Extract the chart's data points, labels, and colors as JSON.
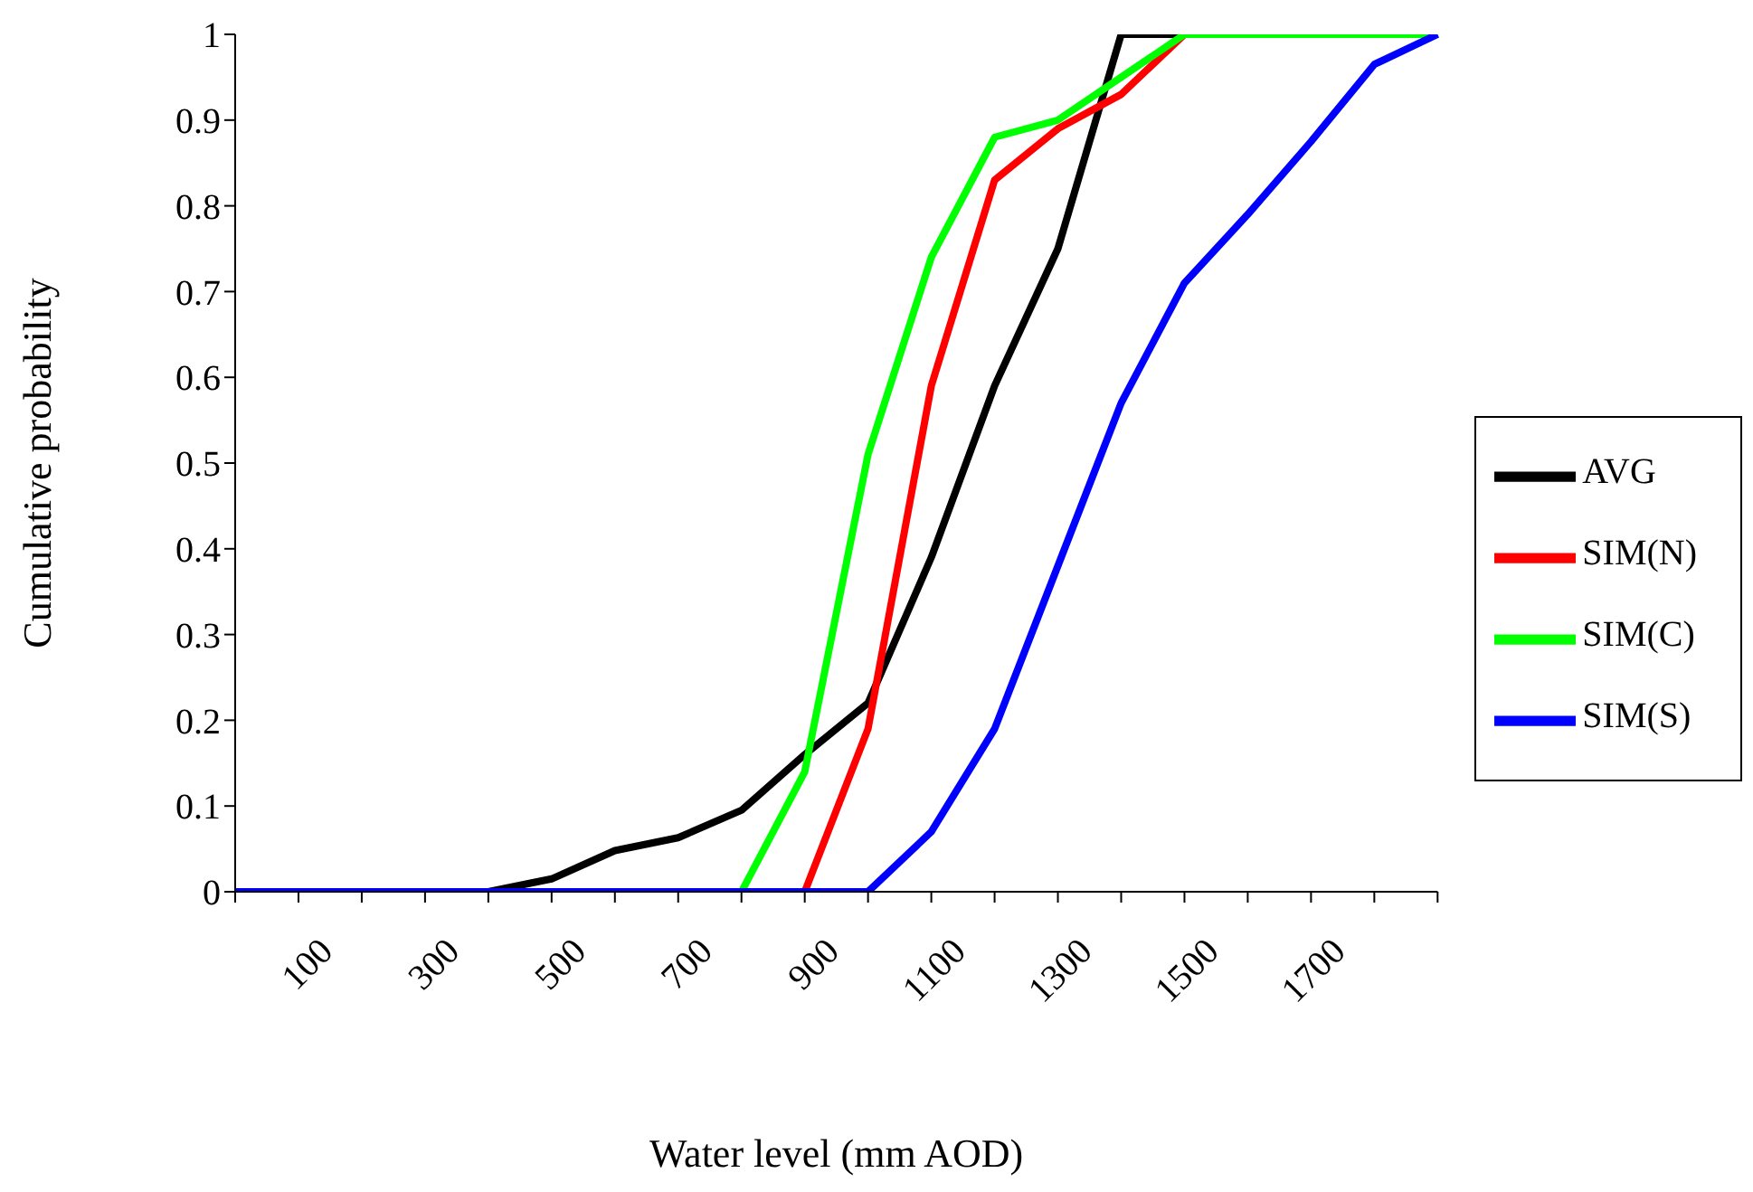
{
  "chart_data": {
    "type": "line",
    "xlabel": "Water level (mm AOD)",
    "ylabel": "Cumulative probability",
    "categories": [
      null,
      "100",
      null,
      "300",
      null,
      "500",
      null,
      "700",
      null,
      "900",
      null,
      "1100",
      null,
      "1300",
      null,
      "1500",
      null,
      "1700",
      null,
      null
    ],
    "series": [
      {
        "name": "AVG",
        "color": "#000000",
        "values": [
          null,
          null,
          null,
          null,
          0,
          0.015,
          0.048,
          0.063,
          0.095,
          0.16,
          0.22,
          0.39,
          0.59,
          0.75,
          1,
          1,
          null,
          null,
          null,
          null
        ]
      },
      {
        "name": "SIM(N)",
        "color": "#ff0000",
        "values": [
          null,
          null,
          null,
          null,
          null,
          null,
          null,
          null,
          null,
          0,
          0.19,
          0.59,
          0.83,
          0.89,
          0.93,
          1,
          null,
          null,
          null,
          null
        ]
      },
      {
        "name": "SIM(C)",
        "color": "#00ff00",
        "values": [
          null,
          null,
          null,
          null,
          null,
          null,
          null,
          null,
          0,
          0.14,
          0.51,
          0.74,
          0.88,
          0.9,
          0.95,
          1,
          1,
          1,
          1,
          1
        ]
      },
      {
        "name": "SIM(S)",
        "color": "#0000ff",
        "values": [
          0,
          0,
          0,
          0,
          0,
          0,
          0,
          0,
          0,
          0,
          0,
          0.07,
          0.19,
          0.38,
          0.57,
          0.71,
          0.79,
          0.875,
          0.965,
          1
        ]
      }
    ],
    "ylim": [
      0,
      1
    ],
    "yticks": [
      0,
      0.1,
      0.2,
      0.3,
      0.4,
      0.5,
      0.6,
      0.7,
      0.8,
      0.9,
      1
    ],
    "grid": false,
    "legend": "right",
    "marker": "none",
    "line_style": "solid"
  }
}
